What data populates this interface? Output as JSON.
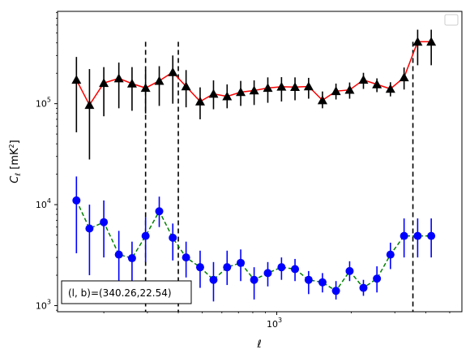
{
  "chart_data": {
    "type": "scatter",
    "title": "",
    "xlabel": "ℓ",
    "ylabel": "C_ℓ [mK²]",
    "xscale": "log",
    "yscale": "log",
    "xlim": [
      130,
      5600
    ],
    "ylim": [
      870,
      820000
    ],
    "x_ticks": [
      {
        "value": 1000,
        "base": "10",
        "exp": "3"
      }
    ],
    "y_ticks": [
      {
        "value": 1000,
        "base": "10",
        "exp": "3"
      },
      {
        "value": 10000,
        "base": "10",
        "exp": "4"
      },
      {
        "value": 100000,
        "base": "10",
        "exp": "5"
      }
    ],
    "vlines": [
      295,
      400,
      3550
    ],
    "legend": {
      "placement": "top-right",
      "entries": []
    },
    "annotation": {
      "text": "(l, b)=(340.26,22.54)",
      "placement": "bottom-left"
    },
    "series": [
      {
        "marker": "triangle",
        "line_color": "#ff0000",
        "marker_color": "#000000",
        "line_style": "solid",
        "x": [
          155,
          175,
          200,
          230,
          260,
          295,
          335,
          380,
          430,
          490,
          555,
          630,
          715,
          810,
          920,
          1045,
          1185,
          1345,
          1530,
          1735,
          1970,
          2240,
          2540,
          2880,
          3270,
          3710,
          4210
        ],
        "y": [
          172000,
          97000,
          160000,
          178000,
          158000,
          143000,
          168000,
          205000,
          148000,
          105000,
          125000,
          118000,
          130000,
          135000,
          143000,
          147000,
          146000,
          148000,
          108000,
          133000,
          137000,
          172000,
          155000,
          140000,
          182000,
          410000,
          410000
        ],
        "err_low": [
          52000,
          28000,
          75000,
          90000,
          85000,
          80000,
          95000,
          100000,
          92000,
          70000,
          88000,
          90000,
          95000,
          97000,
          102000,
          105000,
          108000,
          112000,
          90000,
          110000,
          112000,
          140000,
          130000,
          118000,
          138000,
          240000,
          240000
        ],
        "err_high": [
          290000,
          220000,
          230000,
          255000,
          230000,
          215000,
          235000,
          300000,
          215000,
          145000,
          170000,
          155000,
          168000,
          170000,
          182000,
          183000,
          182000,
          180000,
          132000,
          158000,
          162000,
          202000,
          178000,
          163000,
          228000,
          540000,
          540000
        ]
      },
      {
        "marker": "circle",
        "line_color": "#008000",
        "marker_color": "#0000ff",
        "line_style": "dashed",
        "x": [
          155,
          175,
          200,
          230,
          260,
          295,
          335,
          380,
          430,
          490,
          555,
          630,
          715,
          810,
          920,
          1045,
          1185,
          1345,
          1530,
          1735,
          1970,
          2240,
          2540,
          2880,
          3270,
          3710,
          4210
        ],
        "y": [
          11000,
          5800,
          6700,
          3200,
          2950,
          4900,
          8600,
          4700,
          3000,
          2400,
          1800,
          2400,
          2650,
          1800,
          2100,
          2400,
          2300,
          1800,
          1700,
          1400,
          2200,
          1500,
          1850,
          3200,
          4900,
          4900,
          4900
        ],
        "err_low": [
          3300,
          2000,
          3000,
          1500,
          1400,
          2700,
          6000,
          2800,
          1900,
          1500,
          1100,
          1600,
          1750,
          1150,
          1550,
          1800,
          1750,
          1300,
          1350,
          1150,
          1750,
          1250,
          1350,
          2300,
          3000,
          3000,
          3000
        ],
        "err_high": [
          19000,
          10000,
          11000,
          5500,
          4300,
          7500,
          12000,
          6500,
          4300,
          3500,
          2700,
          3500,
          3600,
          2400,
          2700,
          3000,
          2900,
          2200,
          2100,
          1750,
          2750,
          1800,
          2450,
          4200,
          7300,
          7300,
          7300
        ]
      }
    ]
  }
}
